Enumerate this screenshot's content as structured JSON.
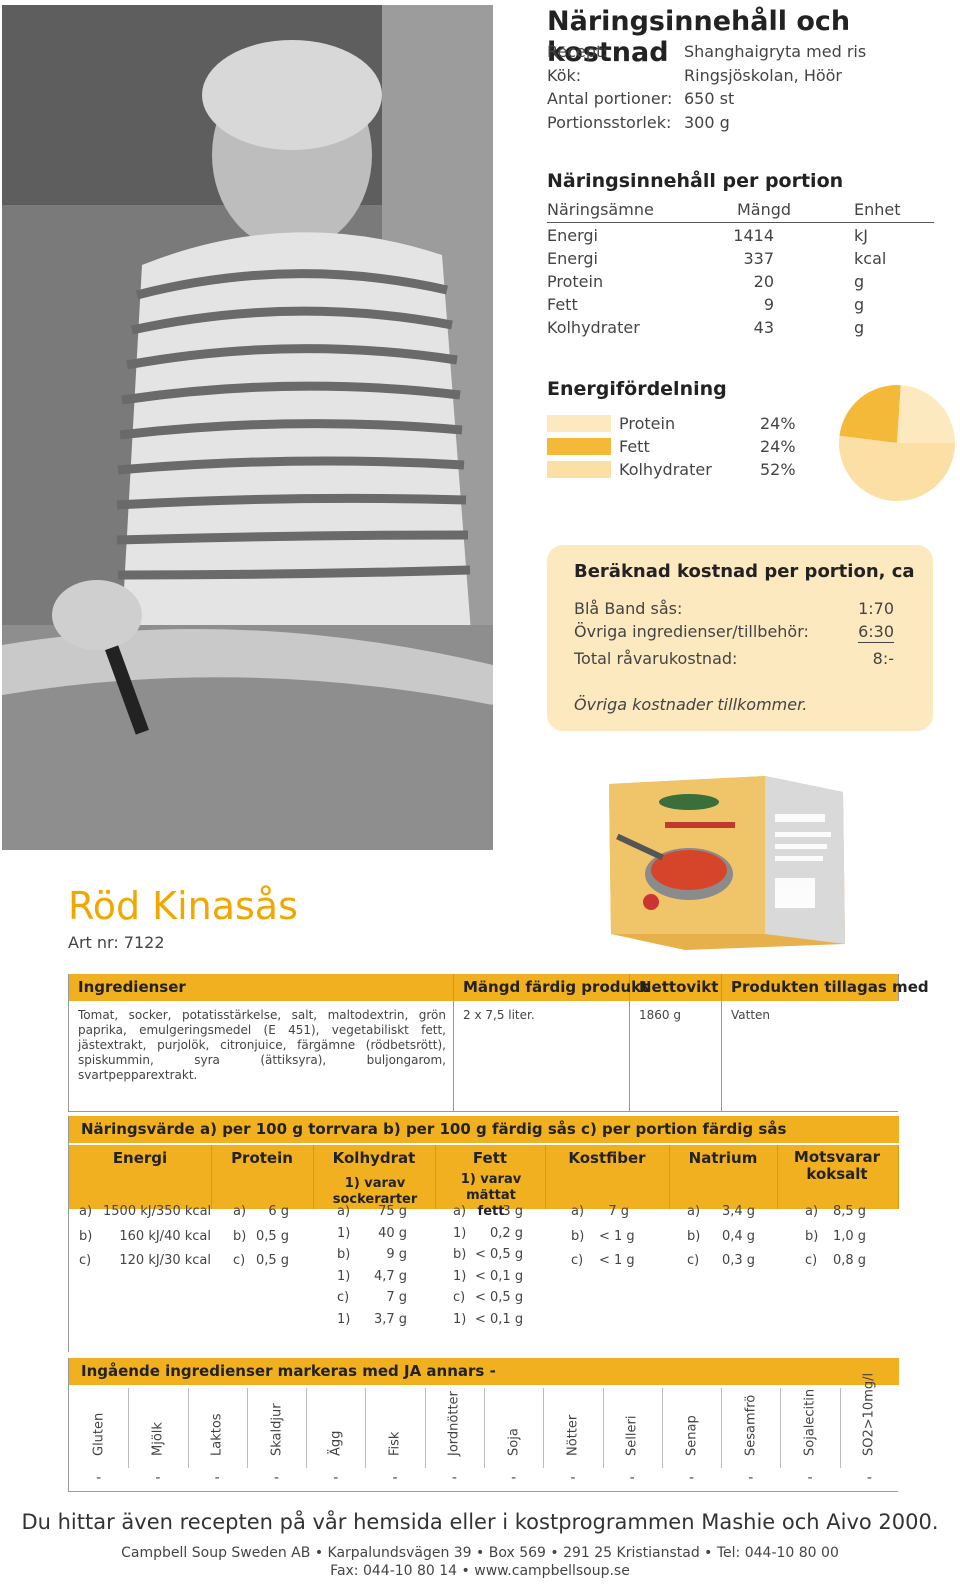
{
  "header": {
    "title": "Näringsinnehåll och kostnad",
    "info": [
      {
        "label": "Recept:",
        "value": "Shanghaigryta med ris"
      },
      {
        "label": "Kök:",
        "value": "Ringsjöskolan, Höör"
      },
      {
        "label": "Antal portioner:",
        "value": "650 st"
      },
      {
        "label": "Portionsstorlek:",
        "value": "300 g"
      }
    ]
  },
  "nutrition": {
    "title": "Näringsinnehåll per portion",
    "columns": [
      "Näringsämne",
      "Mängd",
      "Enhet"
    ],
    "rows": [
      {
        "name": "Energi",
        "amount": "1414",
        "unit": "kJ"
      },
      {
        "name": "Energi",
        "amount": "337",
        "unit": "kcal"
      },
      {
        "name": "Protein",
        "amount": "20",
        "unit": "g"
      },
      {
        "name": "Fett",
        "amount": "9",
        "unit": "g"
      },
      {
        "name": "Kolhydrater",
        "amount": "43",
        "unit": "g"
      }
    ]
  },
  "energy": {
    "title": "Energifördelning",
    "items": [
      {
        "name": "Protein",
        "pct": "24%",
        "value": 24,
        "color": "#fde9bf"
      },
      {
        "name": "Fett",
        "pct": "24%",
        "value": 24,
        "color": "#f5b93a"
      },
      {
        "name": "Kolhydrater",
        "pct": "52%",
        "value": 52,
        "color": "#fbdfa4"
      }
    ]
  },
  "cost": {
    "title": "Beräknad kostnad per portion, ca",
    "rows": [
      {
        "label": "Blå Band sås:",
        "value": "1:70"
      },
      {
        "label": "Övriga ingredienser/tillbehör:",
        "value": "6:30"
      },
      {
        "label": "Total råvarukostnad:",
        "value": "8:-"
      }
    ],
    "note": "Övriga kostnader tillkommer."
  },
  "product": {
    "name": "Röd Kinasås",
    "art_nr": "Art nr: 7122"
  },
  "table1": {
    "headers": [
      "Ingredienser",
      "Mängd färdig produkt",
      "Nettovikt",
      "Produkten tillagas med"
    ],
    "ingredients": "Tomat, socker, potatisstärkelse, salt, maltodextrin, grön paprika, emulgeringsmedel (E 451), vegetabiliskt fett, jästextrakt, purjolök, citronjuice, färgämne (rödbetsrött), spiskummin, syra (ättiksyra), buljongarom, svartpepparextrakt.",
    "amount": "2 x 7,5 liter.",
    "net_weight": "1860 g",
    "prepared_with": "Vatten"
  },
  "table2": {
    "title": "Näringsvärde a) per 100 g torrvara b) per 100 g färdig sås c) per portion färdig sås",
    "headers": [
      "Energi",
      "Protein",
      "Kolhydrat",
      "Fett",
      "Kostfiber",
      "Natrium",
      "Motsvarar koksalt"
    ],
    "subheaders": {
      "kolhydrat": "1) varav sockerarter",
      "fett": "1) varav mättat fett"
    },
    "energi": [
      [
        "a)",
        "1500 kJ/350 kcal"
      ],
      [
        "b)",
        "160 kJ/40 kcal"
      ],
      [
        "c)",
        "120 kJ/30 kcal"
      ]
    ],
    "protein": [
      [
        "a)",
        "6 g"
      ],
      [
        "b)",
        "0,5 g"
      ],
      [
        "c)",
        "0,5 g"
      ]
    ],
    "kolhydrat": [
      [
        "a)",
        "75 g"
      ],
      [
        "1)",
        "40 g"
      ],
      [
        "b)",
        "9 g"
      ],
      [
        "1)",
        "4,7 g"
      ],
      [
        "c)",
        "7 g"
      ],
      [
        "1)",
        "3,7 g"
      ]
    ],
    "fett": [
      [
        "a)",
        "3 g"
      ],
      [
        "1)",
        "0,2 g"
      ],
      [
        "b)",
        "< 0,5 g"
      ],
      [
        "1)",
        "< 0,1 g"
      ],
      [
        "c)",
        "< 0,5 g"
      ],
      [
        "1)",
        "< 0,1 g"
      ]
    ],
    "kostfiber": [
      [
        "a)",
        "7 g"
      ],
      [
        "b)",
        "< 1 g"
      ],
      [
        "c)",
        "< 1 g"
      ]
    ],
    "natrium": [
      [
        "a)",
        "3,4 g"
      ],
      [
        "b)",
        "0,4 g"
      ],
      [
        "c)",
        "0,3 g"
      ]
    ],
    "koksalt": [
      [
        "a)",
        "8,5 g"
      ],
      [
        "b)",
        "1,0 g"
      ],
      [
        "c)",
        "0,8 g"
      ]
    ]
  },
  "table3": {
    "title": "Ingående ingredienser markeras med JA annars -",
    "allergens": [
      {
        "name": "Gluten",
        "value": "-"
      },
      {
        "name": "Mjölk",
        "value": "-"
      },
      {
        "name": "Laktos",
        "value": "-"
      },
      {
        "name": "Skaldjur",
        "value": "-"
      },
      {
        "name": "Ägg",
        "value": "-"
      },
      {
        "name": "Fisk",
        "value": "-"
      },
      {
        "name": "Jordnötter",
        "value": "-"
      },
      {
        "name": "Soja",
        "value": "-"
      },
      {
        "name": "Nötter",
        "value": "-"
      },
      {
        "name": "Selleri",
        "value": "-"
      },
      {
        "name": "Senap",
        "value": "-"
      },
      {
        "name": "Sesamfrö",
        "value": "-"
      },
      {
        "name": "Sojalecitin",
        "value": "-"
      },
      {
        "name": "SO2>10mg/l",
        "value": "-"
      }
    ]
  },
  "footer": {
    "line1": "Du hittar även recepten på vår hemsida eller i kostprogrammen Mashie och Aivo 2000.",
    "line2": "Campbell Soup Sweden AB • Karpalundsvägen 39 • Box 569 • 291 25 Kristianstad • Tel: 044-10 80 00",
    "line3": "Fax: 044-10 80 14 • www.campbellsoup.se"
  }
}
